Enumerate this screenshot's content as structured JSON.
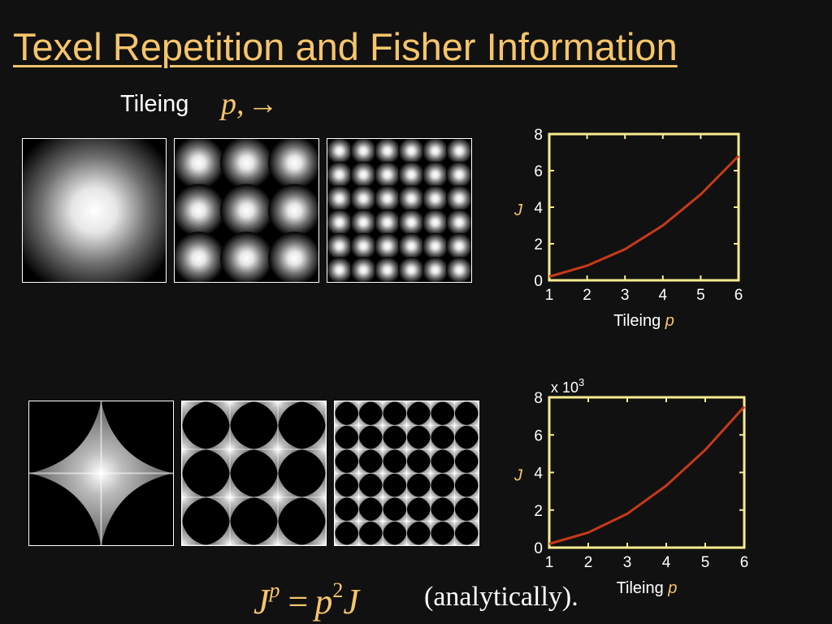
{
  "slide": {
    "title": "Texel Repetition and Fisher Information",
    "tileing_label": "Tileing",
    "tileing_math": "p,",
    "tileing_arrow": "→",
    "formula": {
      "lhs": "J",
      "lhs_sup": "p",
      "eq": "=",
      "rhs_base": "p",
      "rhs_sup": "2",
      "rhs_var": "J"
    },
    "note": "(analytically)."
  },
  "colors": {
    "background": "#111111",
    "title": "#f6c56b",
    "axes": "#f8ec8e",
    "curve": "#c6391a",
    "text": "#ffffff"
  },
  "tiles": {
    "top_row": [
      {
        "type": "gaussian-blobs",
        "repeat": 1
      },
      {
        "type": "gaussian-blobs",
        "repeat": 3
      },
      {
        "type": "gaussian-blobs",
        "repeat": 6
      }
    ],
    "bottom_row": [
      {
        "type": "star-astroid",
        "repeat": 1
      },
      {
        "type": "star-astroid",
        "repeat": 3
      },
      {
        "type": "star-astroid",
        "repeat": 6
      }
    ]
  },
  "chart_data": [
    {
      "type": "line",
      "xlabel": "Tileing",
      "xlabel_var": "p",
      "ylabel": "J",
      "x": [
        1,
        2,
        3,
        4,
        5,
        6
      ],
      "y": [
        0.2,
        0.8,
        1.7,
        3.0,
        4.7,
        6.8
      ],
      "xlim": [
        1,
        6
      ],
      "ylim": [
        0,
        8
      ],
      "xticks": [
        "1",
        "2",
        "3",
        "4",
        "5",
        "6"
      ],
      "yticks": [
        "0",
        "2",
        "4",
        "6",
        "8"
      ],
      "multiplier": ""
    },
    {
      "type": "line",
      "xlabel": "Tileing",
      "xlabel_var": "p",
      "ylabel": "J",
      "x": [
        1,
        2,
        3,
        4,
        5,
        6
      ],
      "y": [
        0.2,
        0.8,
        1.8,
        3.3,
        5.2,
        7.5
      ],
      "xlim": [
        1,
        6
      ],
      "ylim": [
        0,
        8
      ],
      "xticks": [
        "1",
        "2",
        "3",
        "4",
        "5",
        "6"
      ],
      "yticks": [
        "0",
        "2",
        "4",
        "6",
        "8"
      ],
      "multiplier": "x 10",
      "multiplier_exp": "3"
    }
  ]
}
